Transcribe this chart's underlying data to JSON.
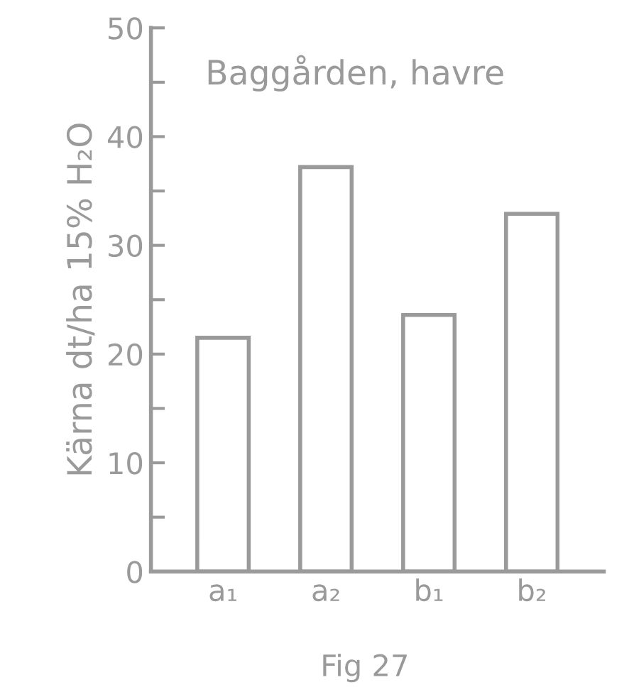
{
  "chart_data": {
    "type": "bar",
    "title": "Baggården, havre",
    "ylabel": "Kärna dt/ha 15% H₂O",
    "categories": [
      "a₁",
      "a₂",
      "b₁",
      "b₂"
    ],
    "values": [
      21.5,
      37.2,
      23.6,
      32.9
    ],
    "color": "#9a9a9a",
    "ylim": [
      0,
      50
    ],
    "yticks": [
      0,
      {
        "value": 5,
        "label": null
      },
      10,
      {
        "value": 15,
        "label": null
      },
      20,
      {
        "value": 25,
        "label": null
      },
      30,
      {
        "value": 35,
        "label": null
      },
      40,
      {
        "value": 45,
        "label": null
      },
      50
    ],
    "annotations": [
      "Fig 27"
    ],
    "grid": false
  }
}
